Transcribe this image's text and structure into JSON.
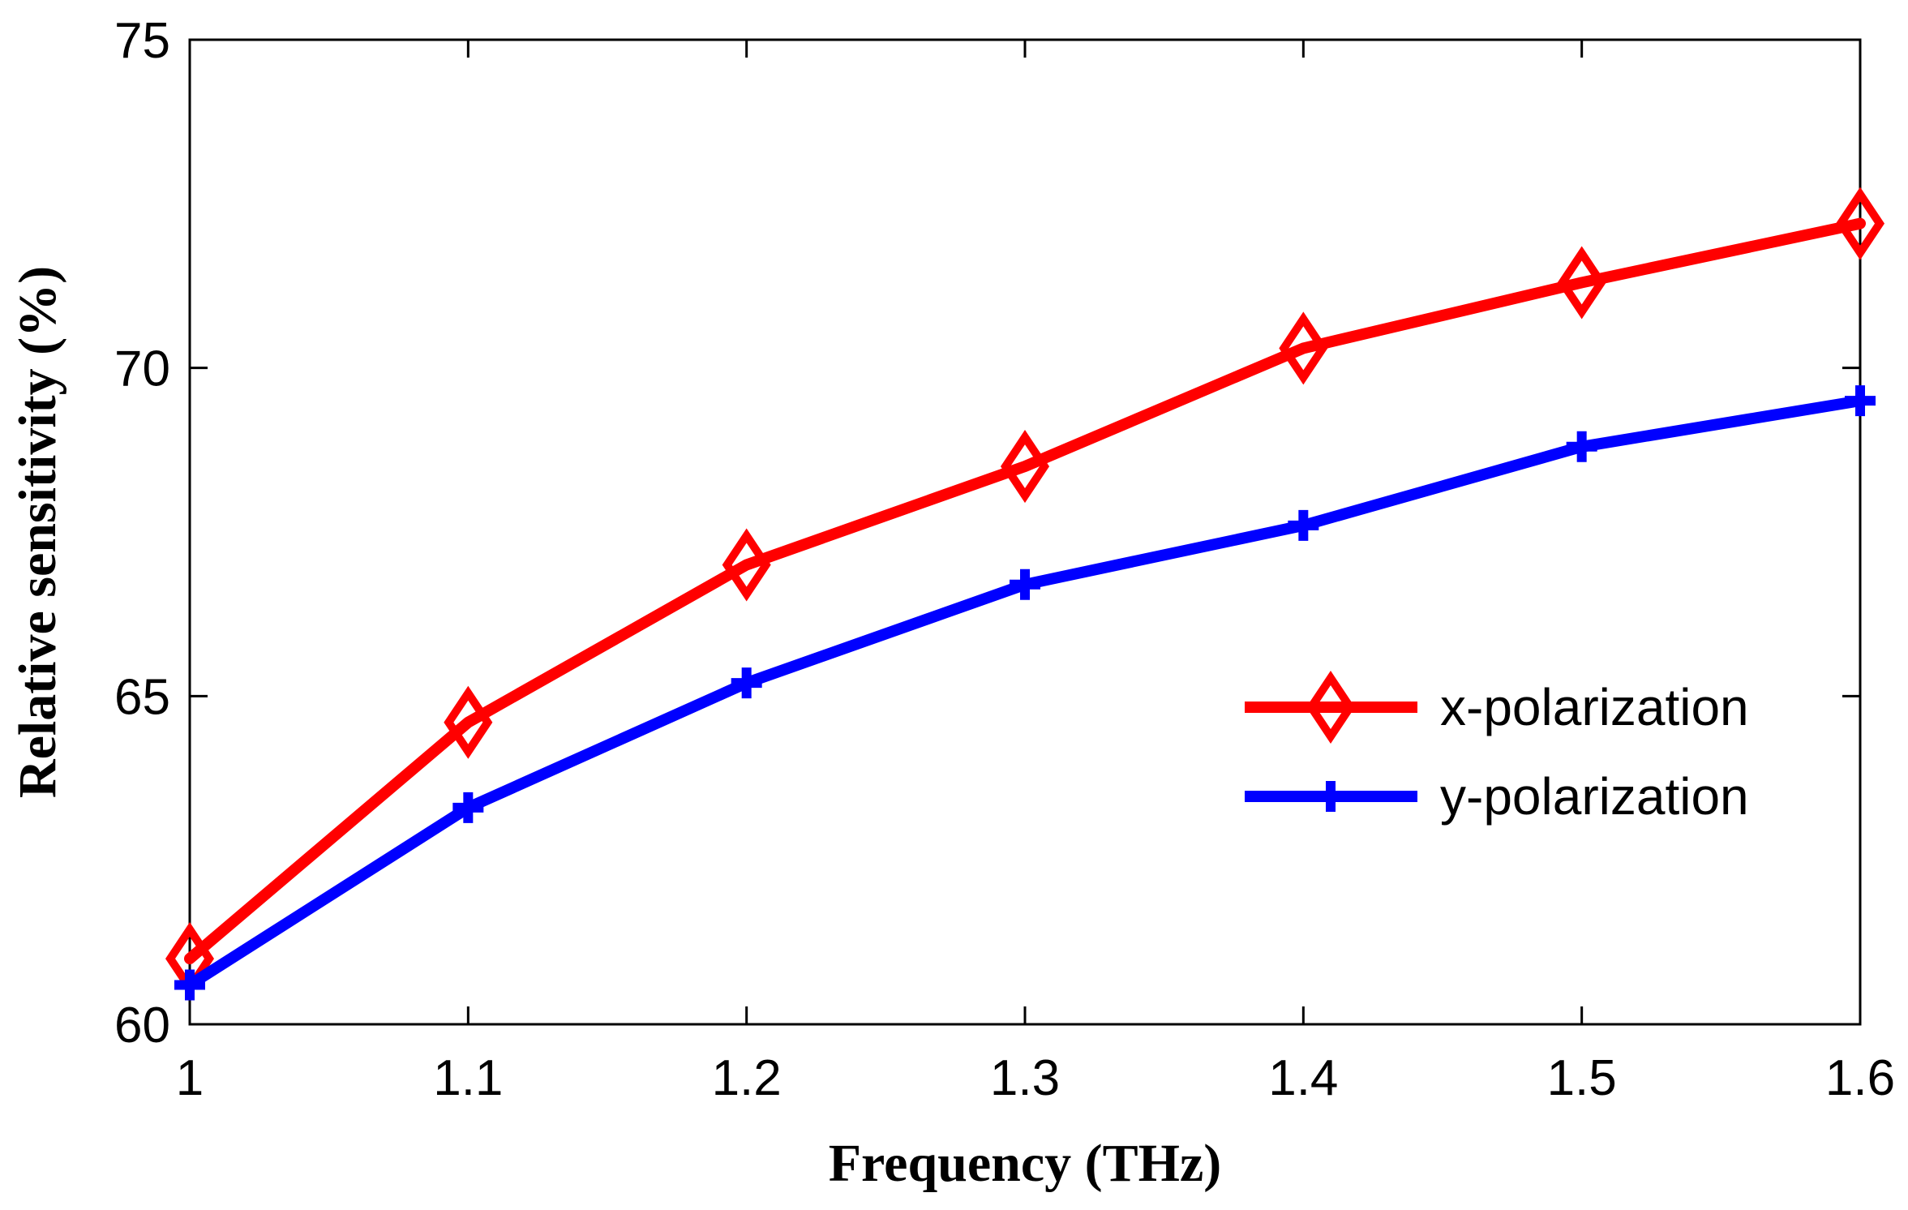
{
  "chart_data": {
    "type": "line",
    "title": "",
    "xlabel": "Frequency (THz)",
    "ylabel": "Relative sensitivity (%)",
    "xlim": [
      1,
      1.6
    ],
    "ylim": [
      60,
      75
    ],
    "xticks": [
      "1",
      "1.1",
      "1.2",
      "1.3",
      "1.4",
      "1.5",
      "1.6"
    ],
    "yticks": [
      "60",
      "65",
      "70",
      "75"
    ],
    "x": [
      1.0,
      1.1,
      1.2,
      1.3,
      1.4,
      1.5,
      1.6
    ],
    "series": [
      {
        "name": "x-polarization",
        "color": "#ff0000",
        "marker": "diamond",
        "values": [
          61.0,
          64.6,
          67.0,
          68.5,
          70.3,
          71.3,
          72.2
        ]
      },
      {
        "name": "y-polarization",
        "color": "#0000ff",
        "marker": "plus",
        "values": [
          60.6,
          63.3,
          65.2,
          66.7,
          67.6,
          68.8,
          69.5
        ]
      }
    ],
    "legend": {
      "placement": "right-center",
      "entries": [
        "x-polarization",
        "y-polarization"
      ]
    },
    "grid": false
  }
}
